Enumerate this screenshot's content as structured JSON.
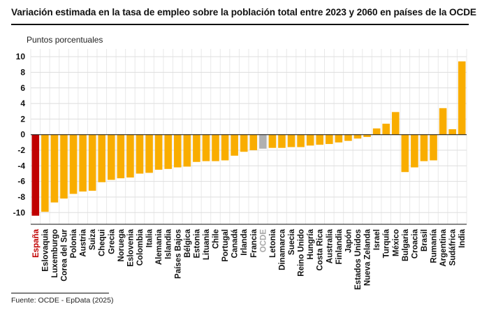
{
  "title": "Variación estimada en la tasa de empleo sobre la población total entre 2023 y 2060 en países de la OCDE",
  "source": "Fuente: OCDE - EpData (2025)",
  "colors": {
    "default": "#f9ad00",
    "highlight": "#c00000",
    "average": "#b0b0b0",
    "highlight_label": "#c00000",
    "average_label": "#a8a8a8"
  },
  "chart_data": {
    "type": "bar",
    "title": "Variación estimada en la tasa de empleo sobre la población total entre 2023 y 2060 en países de la OCDE",
    "ylabel": "Puntos porcentuales",
    "xlabel": "",
    "ylim": [
      -11.5,
      11
    ],
    "yticks": [
      -10,
      -8,
      -6,
      -4,
      -2,
      0,
      2,
      4,
      6,
      8,
      10
    ],
    "grid": true,
    "highlight_category": "España",
    "average_category": "OCDE",
    "categories": [
      "España",
      "Eslovaquia",
      "Luxemburgo",
      "Corea del Sur",
      "Polonia",
      "Austria",
      "Suiza",
      "Chequi",
      "Grecia",
      "Noruega",
      "Eslovenia",
      "Colombia",
      "Italia",
      "Alemania",
      "Islandia",
      "Países Bajos",
      "Bélgica",
      "Estonia",
      "Lituania",
      "Chile",
      "Portugal",
      "Canadá",
      "Irlanda",
      "Francia",
      "OCDE",
      "Letonia",
      "Dinamarca",
      "Suecia",
      "Reino Unido",
      "Hungría",
      "Costa Rica",
      "Australia",
      "Finlandia",
      "Japón",
      "Estados Unidos",
      "Nueva Zelanda",
      "Israel",
      "Turquía",
      "México",
      "Bulgaria",
      "Croacia",
      "Brasil",
      "Rumanía",
      "Argentina",
      "Sudáfrica",
      "India"
    ],
    "values": [
      -10.4,
      -9.9,
      -8.7,
      -8.2,
      -7.6,
      -7.3,
      -7.2,
      -6.1,
      -5.8,
      -5.6,
      -5.5,
      -5.0,
      -4.9,
      -4.5,
      -4.4,
      -4.2,
      -4.1,
      -3.5,
      -3.4,
      -3.4,
      -3.3,
      -2.7,
      -2.2,
      -2.0,
      -1.8,
      -1.7,
      -1.7,
      -1.6,
      -1.6,
      -1.4,
      -1.3,
      -1.2,
      -1.0,
      -0.8,
      -0.5,
      -0.3,
      0.8,
      1.4,
      2.9,
      -4.8,
      -4.2,
      -3.4,
      -3.3,
      3.4,
      0.7,
      9.4
    ]
  }
}
